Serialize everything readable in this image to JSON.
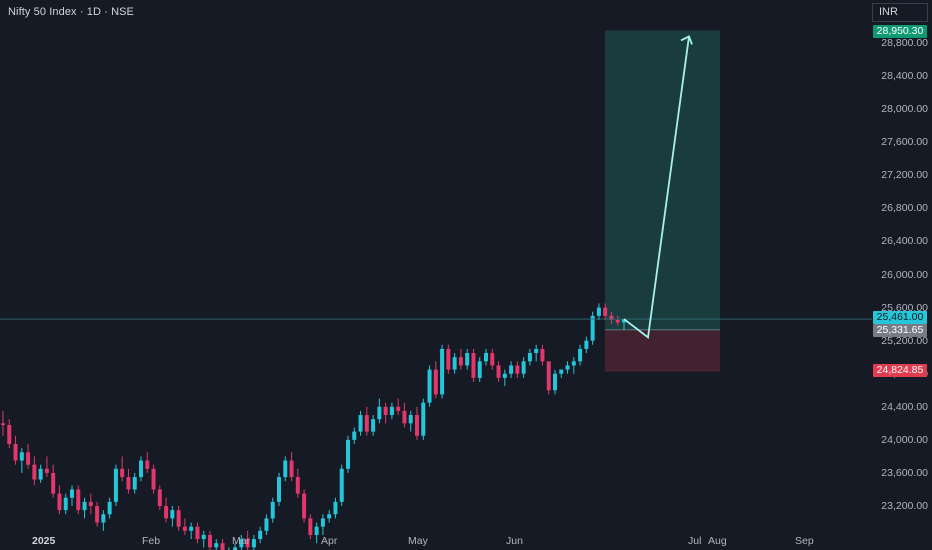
{
  "header": {
    "title": "Nifty 50 Index · 1D · NSE",
    "currency": "INR"
  },
  "colors": {
    "background": "#161a25",
    "up": "#26c6da",
    "down": "#e0386c",
    "profit_zone": "#1b4a48",
    "loss_zone": "#4a2430",
    "arrow": "#a8f0f0",
    "target_badge": "#0e9b74",
    "last_badge": "#26c6da",
    "entry_badge": "#787b86",
    "stop_badge": "#e03b4f"
  },
  "badges": {
    "target": "28,950.30",
    "last": "25,461.00",
    "entry": "25,331.65",
    "stop": "24,824.85"
  },
  "chart_data": {
    "type": "candlestick",
    "symbol": "Nifty 50 Index",
    "interval": "1D",
    "exchange": "NSE",
    "y_ticks": [
      "28,800.00",
      "28,400.00",
      "28,000.00",
      "27,600.00",
      "27,200.00",
      "26,800.00",
      "26,400.00",
      "26,000.00",
      "25,600.00",
      "25,200.00",
      "24,800.00",
      "24,400.00",
      "24,000.00",
      "23,600.00",
      "23,200.00"
    ],
    "y_tick_values": [
      28800,
      28400,
      28000,
      27600,
      27200,
      26800,
      26400,
      26000,
      25600,
      25200,
      24800,
      24400,
      24000,
      23600,
      23200
    ],
    "x_ticks": [
      "2025",
      "Feb",
      "Mar",
      "Apr",
      "May",
      "Jun",
      "Jul",
      "Aug",
      "Sep"
    ],
    "last_price": 25461.0,
    "position": {
      "direction": "long",
      "entry": 25331.65,
      "target": 28950.3,
      "stop": 24824.85
    },
    "candles": [
      [
        24200,
        24350,
        24050,
        24180
      ],
      [
        24180,
        24250,
        23900,
        23950
      ],
      [
        23950,
        24050,
        23700,
        23750
      ],
      [
        23750,
        23900,
        23600,
        23850
      ],
      [
        23850,
        23950,
        23650,
        23700
      ],
      [
        23700,
        23800,
        23450,
        23520
      ],
      [
        23520,
        23700,
        23480,
        23650
      ],
      [
        23650,
        23800,
        23550,
        23600
      ],
      [
        23600,
        23700,
        23300,
        23350
      ],
      [
        23350,
        23450,
        23100,
        23150
      ],
      [
        23150,
        23350,
        23100,
        23300
      ],
      [
        23300,
        23450,
        23200,
        23400
      ],
      [
        23400,
        23450,
        23100,
        23150
      ],
      [
        23150,
        23300,
        23050,
        23250
      ],
      [
        23250,
        23350,
        23100,
        23200
      ],
      [
        23200,
        23250,
        22950,
        23000
      ],
      [
        23000,
        23150,
        22900,
        23100
      ],
      [
        23100,
        23300,
        23050,
        23250
      ],
      [
        23250,
        23700,
        23200,
        23650
      ],
      [
        23650,
        23800,
        23500,
        23550
      ],
      [
        23550,
        23650,
        23350,
        23400
      ],
      [
        23400,
        23600,
        23350,
        23550
      ],
      [
        23550,
        23800,
        23500,
        23750
      ],
      [
        23750,
        23850,
        23600,
        23650
      ],
      [
        23650,
        23700,
        23350,
        23400
      ],
      [
        23400,
        23450,
        23150,
        23200
      ],
      [
        23200,
        23300,
        23000,
        23050
      ],
      [
        23050,
        23200,
        22950,
        23150
      ],
      [
        23150,
        23200,
        22900,
        22950
      ],
      [
        22950,
        23050,
        22850,
        22900
      ],
      [
        22900,
        23000,
        22800,
        22950
      ],
      [
        22950,
        23000,
        22750,
        22800
      ],
      [
        22800,
        22900,
        22700,
        22850
      ],
      [
        22850,
        22900,
        22650,
        22700
      ],
      [
        22700,
        22800,
        22600,
        22750
      ],
      [
        22750,
        22800,
        22550,
        22600
      ],
      [
        22600,
        22700,
        22500,
        22650
      ],
      [
        22650,
        22750,
        22550,
        22700
      ],
      [
        22700,
        22850,
        22650,
        22800
      ],
      [
        22800,
        22900,
        22650,
        22700
      ],
      [
        22700,
        22850,
        22600,
        22800
      ],
      [
        22800,
        22950,
        22750,
        22900
      ],
      [
        22900,
        23100,
        22850,
        23050
      ],
      [
        23050,
        23300,
        23000,
        23250
      ],
      [
        23250,
        23600,
        23200,
        23550
      ],
      [
        23550,
        23800,
        23500,
        23750
      ],
      [
        23750,
        23850,
        23500,
        23550
      ],
      [
        23550,
        23650,
        23300,
        23350
      ],
      [
        23350,
        23400,
        23000,
        23050
      ],
      [
        23050,
        23100,
        22800,
        22850
      ],
      [
        22850,
        23000,
        22750,
        22950
      ],
      [
        22950,
        23100,
        22850,
        23050
      ],
      [
        23050,
        23150,
        23000,
        23100
      ],
      [
        23100,
        23300,
        23050,
        23250
      ],
      [
        23250,
        23700,
        23200,
        23650
      ],
      [
        23650,
        24050,
        23600,
        24000
      ],
      [
        24000,
        24150,
        23950,
        24100
      ],
      [
        24100,
        24350,
        24050,
        24300
      ],
      [
        24300,
        24400,
        24050,
        24100
      ],
      [
        24100,
        24300,
        24050,
        24250
      ],
      [
        24250,
        24500,
        24200,
        24400
      ],
      [
        24400,
        24450,
        24200,
        24300
      ],
      [
        24300,
        24450,
        24250,
        24400
      ],
      [
        24400,
        24500,
        24300,
        24350
      ],
      [
        24350,
        24450,
        24150,
        24200
      ],
      [
        24200,
        24350,
        24100,
        24300
      ],
      [
        24300,
        24400,
        24000,
        24050
      ],
      [
        24050,
        24500,
        24000,
        24450
      ],
      [
        24450,
        24900,
        24400,
        24850
      ],
      [
        24850,
        24950,
        24500,
        24550
      ],
      [
        24550,
        25150,
        24500,
        25100
      ],
      [
        25100,
        25150,
        24800,
        24850
      ],
      [
        24850,
        25050,
        24800,
        25000
      ],
      [
        25000,
        25100,
        24850,
        24900
      ],
      [
        24900,
        25100,
        24850,
        25050
      ],
      [
        25050,
        25100,
        24700,
        24750
      ],
      [
        24750,
        25000,
        24700,
        24950
      ],
      [
        24950,
        25100,
        24900,
        25050
      ],
      [
        25050,
        25100,
        24850,
        24900
      ],
      [
        24900,
        24950,
        24700,
        24750
      ],
      [
        24750,
        24850,
        24650,
        24800
      ],
      [
        24800,
        24950,
        24750,
        24900
      ],
      [
        24900,
        24950,
        24750,
        24800
      ],
      [
        24800,
        25000,
        24750,
        24950
      ],
      [
        24950,
        25100,
        24900,
        25050
      ],
      [
        25050,
        25150,
        24950,
        25100
      ],
      [
        25100,
        25150,
        24900,
        24950
      ],
      [
        24950,
        24950,
        24550,
        24600
      ],
      [
        24600,
        24850,
        24550,
        24800
      ],
      [
        24800,
        24850,
        24750,
        24850
      ],
      [
        24850,
        24950,
        24800,
        24900
      ],
      [
        24900,
        25000,
        24800,
        24950
      ],
      [
        24950,
        25150,
        24900,
        25100
      ],
      [
        25100,
        25250,
        25050,
        25200
      ],
      [
        25200,
        25550,
        25150,
        25500
      ],
      [
        25500,
        25650,
        25450,
        25600
      ],
      [
        25600,
        25650,
        25450,
        25500
      ],
      [
        25500,
        25550,
        25400,
        25450
      ],
      [
        25450,
        25500,
        25380,
        25420
      ],
      [
        25420,
        25461,
        25330,
        25461
      ]
    ]
  }
}
